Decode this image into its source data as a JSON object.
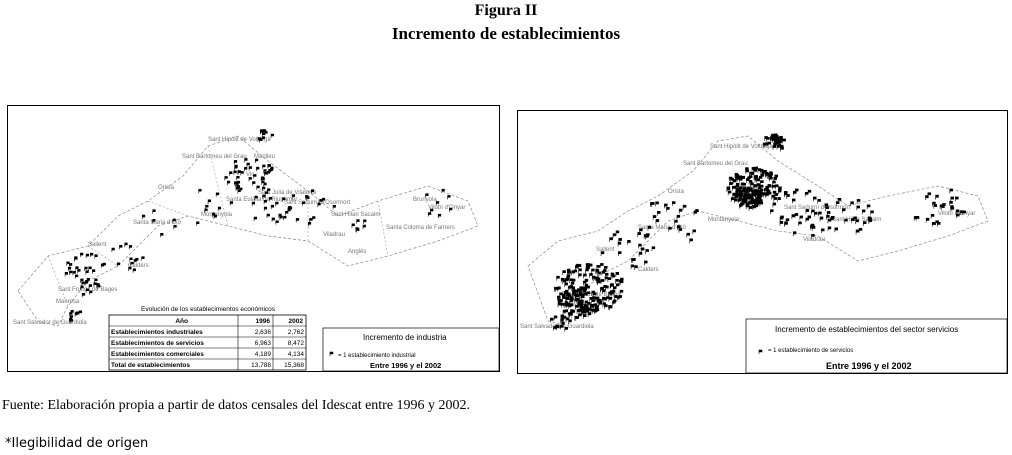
{
  "header": {
    "figure": "Figura II",
    "title": "Incremento de establecimientos"
  },
  "left_map": {
    "places": [
      "Sant Hipòlit de Voltregà",
      "Sant Bartomeu del Grau",
      "Manlleu",
      "Orista",
      "Vic",
      "Santa Eulàlia de Riuprimer",
      "Montanyola",
      "Sant Julià de Vilatorta",
      "Sant Sadurní d'Osormort",
      "Sant Hilari Sacalm",
      "Santa Coloma de Farners",
      "Brunyola",
      "Vilobí d'Onyar",
      "Viladrau",
      "Anglès",
      "Santa Maria d'Oló",
      "Sallent",
      "Calders",
      "Sant Fruitós de Bages",
      "Manresa",
      "Sant Salvador de Guardiola"
    ],
    "table": {
      "title": "Evolución de los establecimientos económicos",
      "columns": [
        "Año",
        "1996",
        "2002"
      ],
      "rows": [
        [
          "Establecimientos industriales",
          "2,636",
          "2,762"
        ],
        [
          "Establecimientos de servicios",
          "6,963",
          "8,472"
        ],
        [
          "Establecimientos comerciales",
          "4,189",
          "4,134"
        ],
        [
          "Total de establecimientos",
          "13,788",
          "15,368"
        ]
      ]
    },
    "legend": {
      "title": "Incremento de industria",
      "item": "= 1 establecimiento industrial",
      "period": "Entre 1996 y el 2002"
    }
  },
  "right_map": {
    "places": [
      "Sant Hipòlit de Voltregà",
      "Sant Bartomeu del Grau",
      "Orista",
      "Vic",
      "Montanyola",
      "Sant Sadurní d'Osormort",
      "Sant Hilari Sacalm",
      "Viladrau",
      "Santa Maria d'Oló",
      "Sallent",
      "Calders",
      "Sant Fruitós de Bages",
      "Manresa",
      "Sant Salvador de Guardiola",
      "Vilobí d'Onyar"
    ],
    "legend": {
      "title": "Incremento de establecimientos del sector servicios",
      "item": "= 1 establecimiento de servicios",
      "period": "Entre 1996 y el 2002"
    }
  },
  "source": "Fuente: Elaboración propia a partir de datos censales del Idescat entre 1996 y 2002.",
  "note": "*Ilegibilidad de origen"
}
